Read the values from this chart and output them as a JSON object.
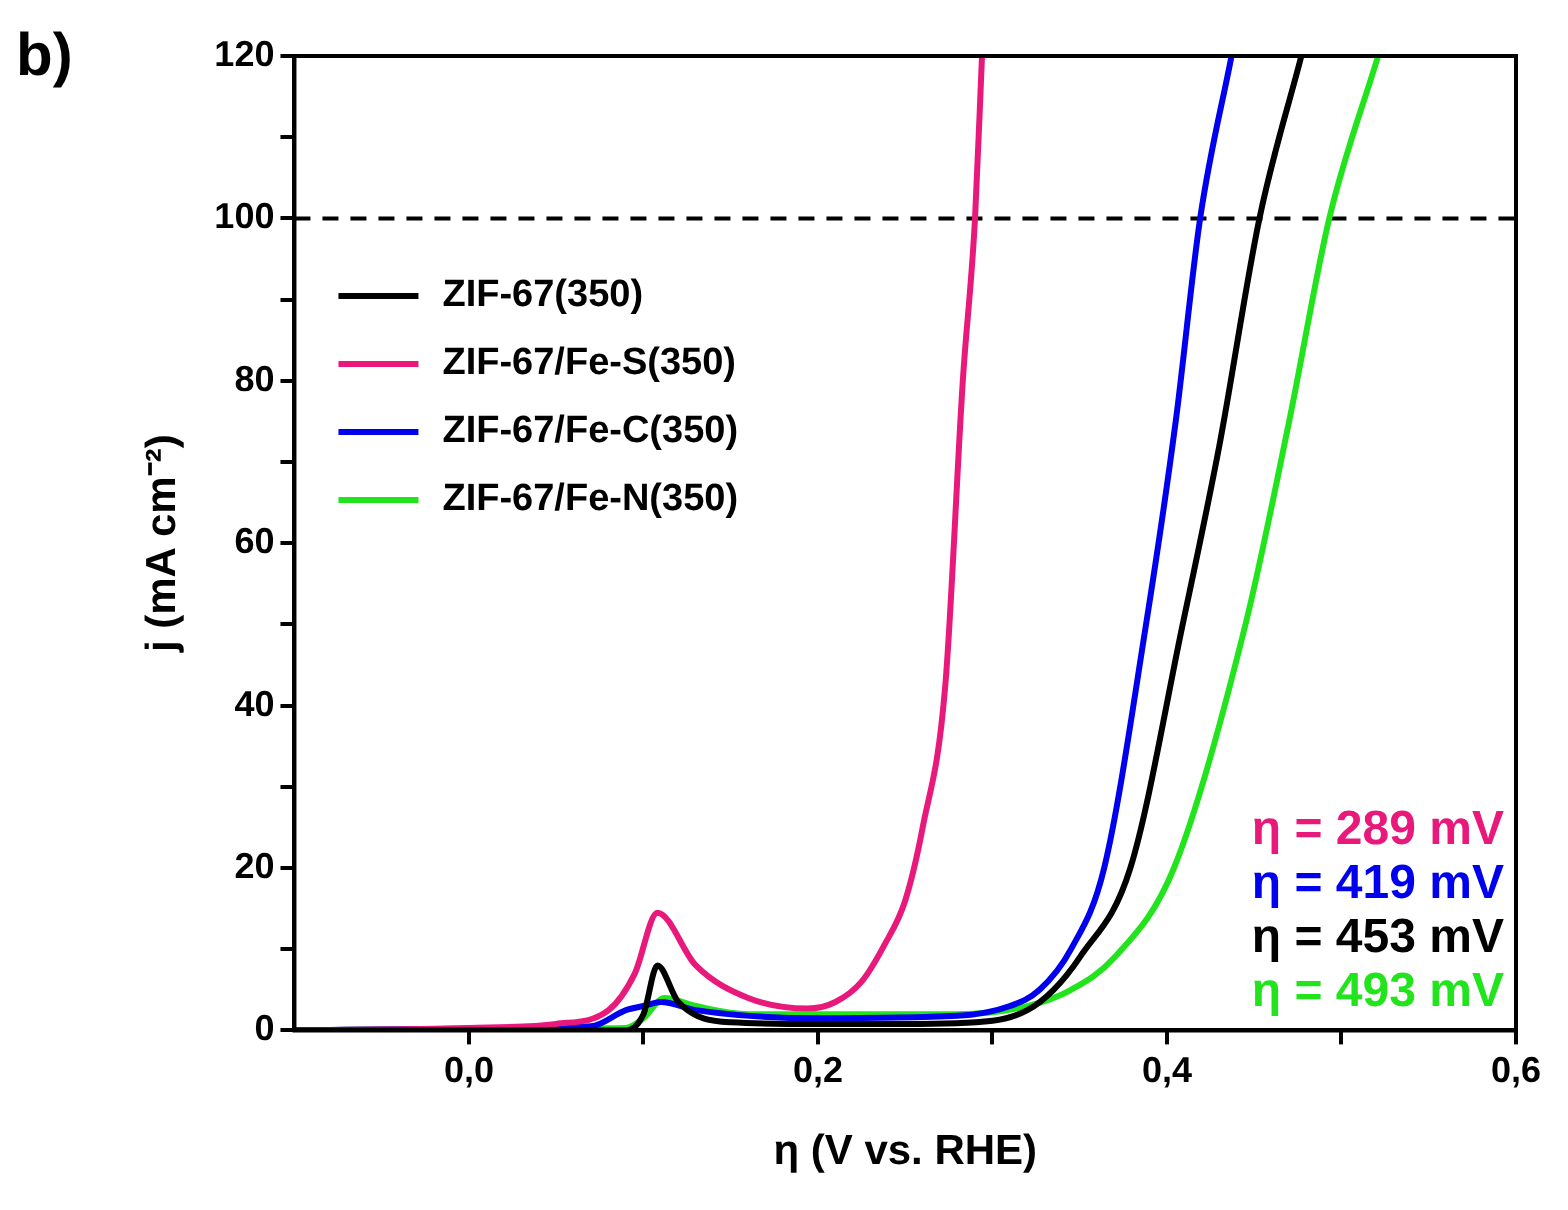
{
  "chart_data": {
    "type": "line",
    "title": "b)",
    "xlabel": "η (V vs. RHE)",
    "ylabel": "j (mA cm⁻²)",
    "xlim": [
      -0.1,
      0.6
    ],
    "ylim": [
      0,
      120
    ],
    "xticks": [
      {
        "value": 0,
        "label": "0,0"
      },
      {
        "value": 0.1,
        "label": null
      },
      {
        "value": 0.2,
        "label": "0,2"
      },
      {
        "value": 0.3,
        "label": null
      },
      {
        "value": 0.4,
        "label": "0,4"
      },
      {
        "value": 0.5,
        "label": null
      },
      {
        "value": 0.6,
        "label": "0,6"
      }
    ],
    "yticks": [
      0,
      {
        "value": 10,
        "label": null
      },
      20,
      {
        "value": 30,
        "label": null
      },
      40,
      {
        "value": 50,
        "label": null
      },
      60,
      {
        "value": 70,
        "label": null
      },
      80,
      {
        "value": 90,
        "label": null
      },
      100,
      {
        "value": 110,
        "label": null
      },
      120
    ],
    "grid": false,
    "legend": "top left",
    "marker": "none",
    "line_style": "solid",
    "series": [
      {
        "name": "ZIF-67(350)",
        "color": "#000000",
        "x": [
          -0.1,
          0.0,
          0.09,
          0.1,
          0.108,
          0.12,
          0.15,
          0.2,
          0.25,
          0.3,
          0.32,
          0.335,
          0.35,
          0.379,
          0.409,
          0.43,
          0.453,
          0.477
        ],
        "values": [
          0,
          0,
          0,
          2,
          8,
          3.5,
          1,
          0.8,
          0.8,
          1.2,
          2.5,
          5,
          9,
          20,
          50,
          72,
          100,
          120
        ]
      },
      {
        "name": "ZIF-67/Fe-S(350)",
        "color": "#e8197b",
        "x": [
          -0.1,
          0.0,
          0.05,
          0.08,
          0.095,
          0.108,
          0.13,
          0.16,
          0.194,
          0.21,
          0.225,
          0.238,
          0.25,
          0.26,
          0.273,
          0.283,
          0.29,
          0.294
        ],
        "values": [
          0,
          0.3,
          0.8,
          2.5,
          7,
          14.5,
          8,
          4,
          2.7,
          3.5,
          6,
          10.5,
          16,
          25,
          42.6,
          80,
          100,
          120
        ]
      },
      {
        "name": "ZIF-67/Fe-C(350)",
        "color": "#0000ee",
        "x": [
          -0.1,
          0.0,
          0.07,
          0.09,
          0.1,
          0.11,
          0.13,
          0.2,
          0.28,
          0.31,
          0.327,
          0.345,
          0.364,
          0.388,
          0.405,
          0.419,
          0.437
        ],
        "values": [
          0,
          0.2,
          0.5,
          2.5,
          3,
          3.5,
          2.5,
          1.5,
          1.8,
          3,
          5,
          10,
          20,
          50,
          75,
          100,
          120
        ]
      },
      {
        "name": "ZIF-67/Fe-N(350)",
        "color": "#22e41c",
        "x": [
          -0.1,
          0.0,
          0.09,
          0.1,
          0.112,
          0.13,
          0.16,
          0.2,
          0.28,
          0.32,
          0.345,
          0.37,
          0.404,
          0.445,
          0.47,
          0.493,
          0.521
        ],
        "values": [
          0,
          0.2,
          0.3,
          1.5,
          4,
          3,
          2,
          2,
          2,
          3,
          5,
          9,
          20,
          50,
          75,
          100,
          120
        ]
      }
    ],
    "ref_lines": [
      {
        "axis": "y",
        "value": 100,
        "color": "#000000",
        "line_style": "dashed"
      }
    ],
    "annotations": [
      "η = 289 mV",
      "η = 419 mV",
      "η = 453 mV",
      "η = 493 mV"
    ]
  }
}
